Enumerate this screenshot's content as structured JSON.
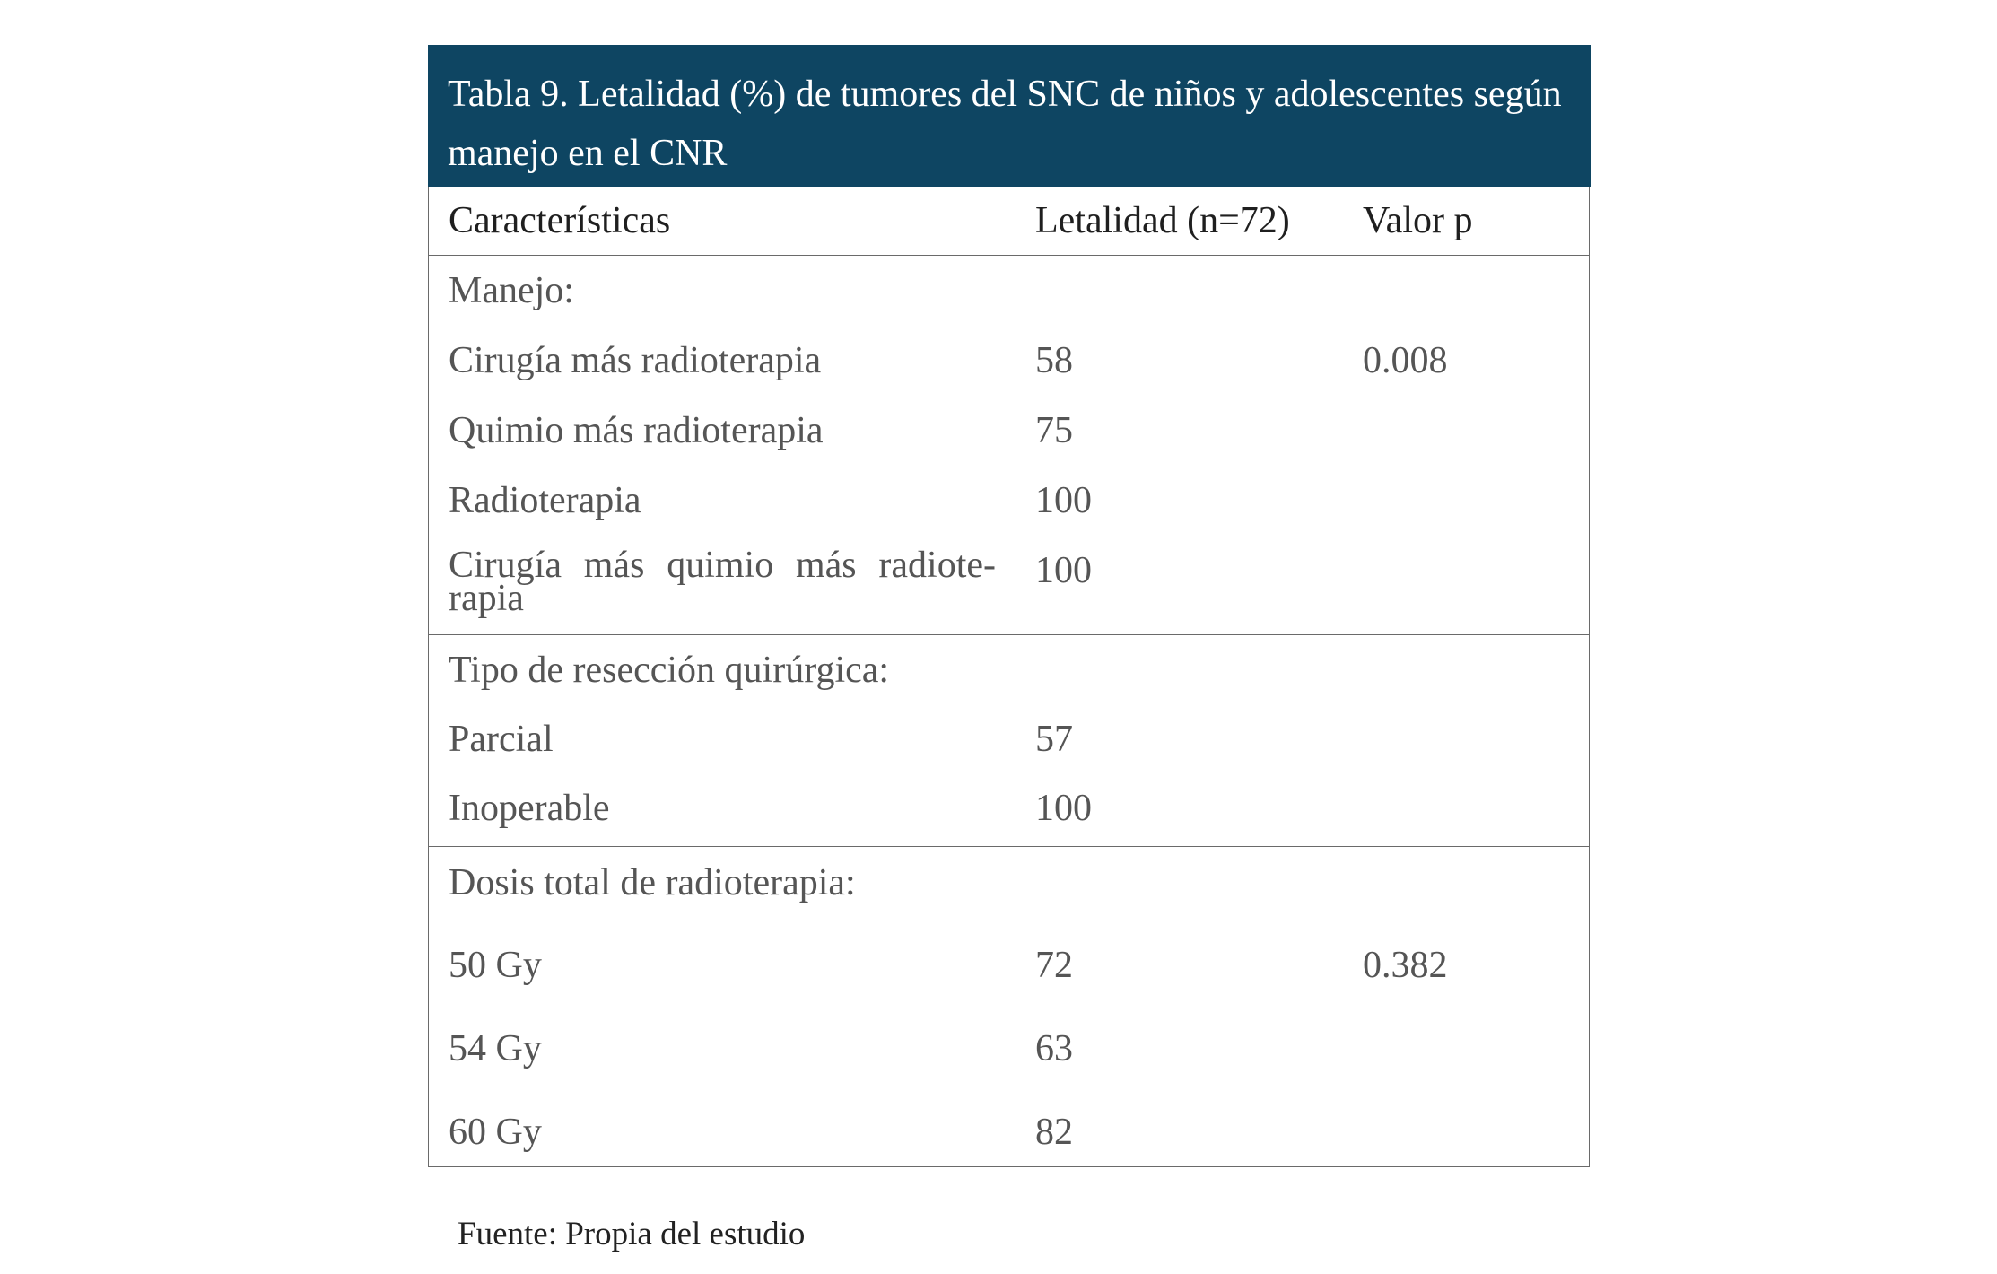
{
  "table": {
    "title": "Tabla 9. Letalidad (%) de tumores del SNC de niños y adolescentes según manejo en el CNR",
    "columns": [
      "Características",
      "Letalidad (n=72)",
      "Valor p"
    ],
    "sections": [
      {
        "heading": "Manejo:",
        "rows": [
          {
            "label": "Cirugía más radioterapia",
            "letalidad": "58",
            "p": "0.008"
          },
          {
            "label": "Quimio más radioterapia",
            "letalidad": "75",
            "p": ""
          },
          {
            "label": "Radioterapia",
            "letalidad": "100",
            "p": ""
          },
          {
            "label": "Cirugía más quimio más radiote-rapia",
            "letalidad": "100",
            "p": ""
          }
        ]
      },
      {
        "heading": "Tipo de resección quirúrgica:",
        "rows": [
          {
            "label": "Parcial",
            "letalidad": "57",
            "p": ""
          },
          {
            "label": "Inoperable",
            "letalidad": "100",
            "p": ""
          }
        ]
      },
      {
        "heading": "Dosis total de radioterapia:",
        "rows": [
          {
            "label": "50 Gy",
            "letalidad": "72",
            "p": "0.382"
          },
          {
            "label": "54 Gy",
            "letalidad": "63",
            "p": ""
          },
          {
            "label": "60 Gy",
            "letalidad": "82",
            "p": ""
          }
        ]
      }
    ]
  },
  "source": "Fuente: Propia del estudio",
  "colors": {
    "title_background": "#0e4562",
    "title_text": "#ffffff",
    "body_text": "#555555",
    "header_text": "#1f1f1f",
    "rule": "#6a6a6a"
  }
}
